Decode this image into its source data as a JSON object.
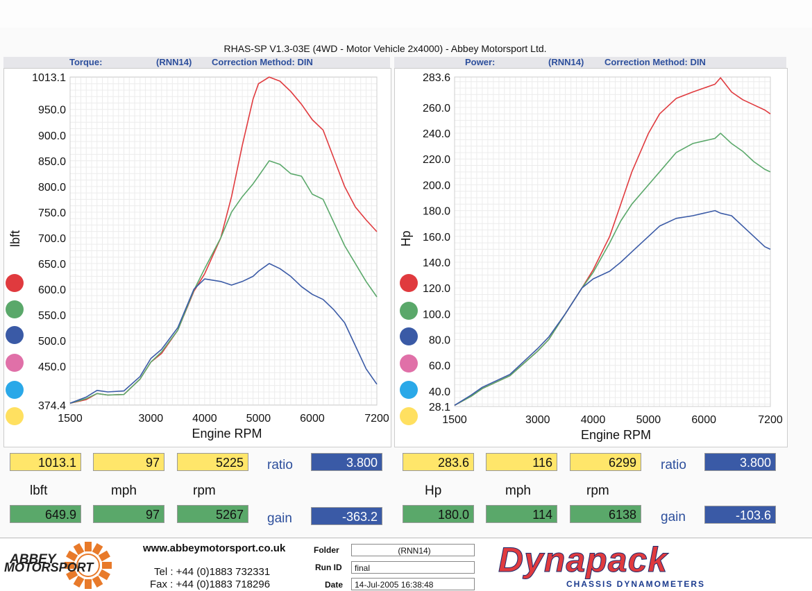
{
  "header": {
    "title": "RHAS-SP V1.3-03E  (4WD - Motor Vehicle 2x4000) - Abbey Motorsport Ltd.",
    "left": {
      "label": "Torque:",
      "run": "(RNN14)",
      "correction": "Correction Method: DIN"
    },
    "right": {
      "label": "Power:",
      "run": "(RNN14)",
      "correction": "Correction Method: DIN"
    }
  },
  "colors": {
    "red": "#e03a3e",
    "green": "#5aa86a",
    "blue": "#3a5aa6",
    "pink": "#e070a8",
    "cyan": "#2aa8e8",
    "yellow": "#ffe060"
  },
  "legend_dots": [
    "red",
    "green",
    "blue",
    "pink",
    "cyan",
    "yellow"
  ],
  "chart_data": [
    {
      "type": "line",
      "ylabel": "lbft",
      "xlabel": "Engine RPM",
      "xlim": [
        1500,
        7200
      ],
      "ylim": [
        374.4,
        1013.1
      ],
      "x_ticks": [
        "1500",
        "3000",
        "4000",
        "5000",
        "6000",
        "7200"
      ],
      "y_ticks": [
        "1013.1",
        "950.0",
        "900.0",
        "850.0",
        "800.0",
        "750.0",
        "700.0",
        "650.0",
        "600.0",
        "550.0",
        "500.0",
        "450.0",
        "374.4"
      ],
      "grid": true,
      "series": [
        {
          "color": "red",
          "x": [
            1500,
            1800,
            2000,
            2200,
            2500,
            2800,
            3000,
            3200,
            3500,
            3800,
            4000,
            4300,
            4500,
            4700,
            4900,
            5000,
            5200,
            5400,
            5600,
            5800,
            6000,
            6200,
            6400,
            6600,
            6800,
            7000,
            7200
          ],
          "y": [
            378,
            385,
            397,
            394,
            395,
            425,
            458,
            475,
            520,
            596,
            630,
            700,
            780,
            880,
            970,
            1000,
            1013,
            1005,
            985,
            960,
            930,
            910,
            855,
            800,
            760,
            735,
            712
          ]
        },
        {
          "color": "green",
          "x": [
            1500,
            1800,
            2000,
            2200,
            2500,
            2800,
            3000,
            3200,
            3500,
            3800,
            4000,
            4300,
            4500,
            4700,
            4900,
            5000,
            5200,
            5400,
            5600,
            5800,
            6000,
            6200,
            6400,
            6600,
            6800,
            7000,
            7200
          ],
          "y": [
            378,
            387,
            397,
            394,
            395,
            425,
            458,
            478,
            520,
            598,
            640,
            700,
            750,
            780,
            805,
            820,
            850,
            843,
            825,
            820,
            785,
            775,
            730,
            685,
            650,
            615,
            585
          ]
        },
        {
          "color": "blue",
          "x": [
            1500,
            1800,
            2000,
            2200,
            2500,
            2800,
            3000,
            3200,
            3500,
            3800,
            4000,
            4300,
            4500,
            4700,
            4900,
            5000,
            5200,
            5400,
            5600,
            5800,
            6000,
            6200,
            6400,
            6600,
            6800,
            7000,
            7200
          ],
          "y": [
            378,
            390,
            403,
            400,
            402,
            430,
            465,
            483,
            525,
            600,
            620,
            615,
            608,
            615,
            625,
            635,
            650,
            640,
            625,
            605,
            590,
            580,
            560,
            535,
            490,
            445,
            415
          ]
        }
      ]
    },
    {
      "type": "line",
      "ylabel": "Hp",
      "xlabel": "Engine RPM",
      "xlim": [
        1500,
        7200
      ],
      "ylim": [
        28.1,
        283.6
      ],
      "x_ticks": [
        "1500",
        "3000",
        "4000",
        "5000",
        "6000",
        "7200"
      ],
      "y_ticks": [
        "283.6",
        "260.0",
        "240.0",
        "220.0",
        "200.0",
        "180.0",
        "160.0",
        "140.0",
        "120.0",
        "100.0",
        "80.0",
        "60.0",
        "40.0",
        "28.1"
      ],
      "grid": true,
      "series": [
        {
          "color": "red",
          "x": [
            1500,
            1800,
            2000,
            2500,
            3000,
            3200,
            3500,
            3800,
            4000,
            4300,
            4500,
            4700,
            5000,
            5200,
            5500,
            5800,
            6000,
            6200,
            6300,
            6500,
            6700,
            6900,
            7100,
            7200
          ],
          "y": [
            29,
            36,
            42,
            52,
            71,
            80,
            100,
            120,
            134,
            160,
            185,
            210,
            240,
            255,
            267,
            272,
            275,
            278,
            283,
            272,
            266,
            262,
            258,
            255
          ]
        },
        {
          "color": "green",
          "x": [
            1500,
            1800,
            2000,
            2500,
            3000,
            3200,
            3500,
            3800,
            4000,
            4300,
            4500,
            4700,
            5000,
            5200,
            5500,
            5800,
            6000,
            6200,
            6300,
            6500,
            6700,
            6900,
            7100,
            7200
          ],
          "y": [
            29,
            36,
            42,
            52,
            71,
            80,
            100,
            120,
            132,
            155,
            172,
            185,
            200,
            210,
            225,
            232,
            234,
            236,
            240,
            232,
            226,
            218,
            212,
            210
          ]
        },
        {
          "color": "blue",
          "x": [
            1500,
            1800,
            2000,
            2500,
            3000,
            3200,
            3500,
            3800,
            4000,
            4300,
            4500,
            4700,
            5000,
            5200,
            5500,
            5800,
            6000,
            6200,
            6300,
            6500,
            6700,
            6900,
            7100,
            7200
          ],
          "y": [
            29,
            37,
            43,
            53,
            73,
            82,
            100,
            120,
            127,
            133,
            140,
            148,
            160,
            168,
            174,
            176,
            178,
            180,
            178,
            176,
            168,
            160,
            152,
            150
          ]
        }
      ]
    }
  ],
  "readouts": {
    "left": {
      "max_row": [
        "1013.1",
        "97",
        "5225"
      ],
      "units": [
        "lbft",
        "mph",
        "rpm"
      ],
      "sub_row": [
        "649.9",
        "97",
        "5267"
      ],
      "ratio_label": "ratio",
      "ratio_value": "3.800",
      "gain_label": "gain",
      "gain_value": "-363.2"
    },
    "right": {
      "max_row": [
        "283.6",
        "116",
        "6299"
      ],
      "units": [
        "Hp",
        "mph",
        "rpm"
      ],
      "sub_row": [
        "180.0",
        "114",
        "6138"
      ],
      "ratio_label": "ratio",
      "ratio_value": "3.800",
      "gain_label": "gain",
      "gain_value": "-103.6"
    }
  },
  "footer": {
    "logo_text_1": "ABBEY",
    "logo_text_2": "MOTORSPORT",
    "website": "www.abbeymotorsport.co.uk",
    "tel": "Tel : +44 (0)1883 732331",
    "fax": "Fax : +44 (0)1883 718296",
    "folder_label": "Folder",
    "folder_value": "(RNN14)",
    "runid_label": "Run ID",
    "runid_value": "final",
    "date_label": "Date",
    "date_value": "14-Jul-2005  16:38:48",
    "brand": "Dynapack",
    "brand_sub": "CHASSIS   DYNAMOMETERS"
  }
}
